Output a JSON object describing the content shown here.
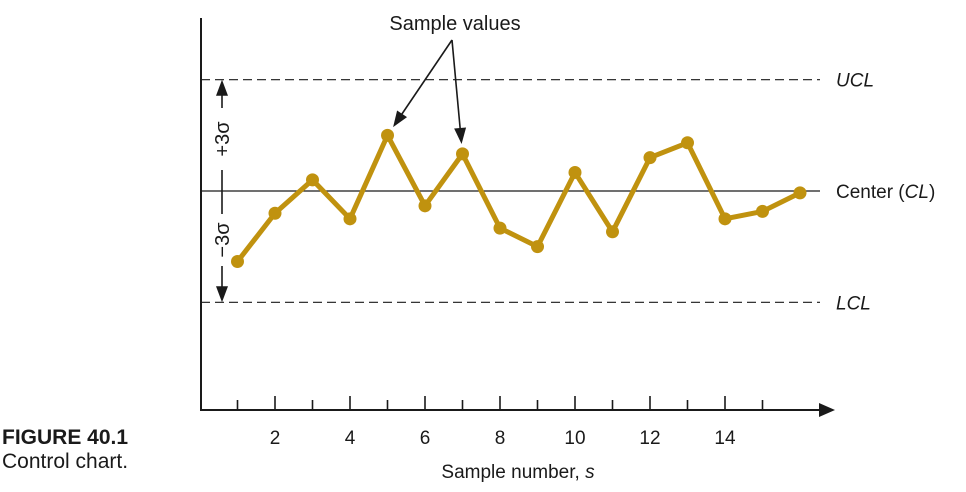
{
  "figure": {
    "number": "FIGURE 40.1",
    "caption": "Control chart."
  },
  "chart_data": {
    "type": "line",
    "xlabel": "Sample number, s",
    "ylabel": "",
    "x_tick_labels": [
      "2",
      "4",
      "6",
      "8",
      "10",
      "12",
      "14"
    ],
    "xlim": [
      0,
      17
    ],
    "ylim": [
      -5.5,
      3.2
    ],
    "series": [
      {
        "x": [
          1,
          2,
          3,
          4,
          5,
          6,
          7,
          8,
          9,
          10,
          11,
          12,
          13,
          14,
          15,
          16
        ],
        "values": [
          -1.9,
          -0.6,
          0.3,
          -0.75,
          1.5,
          -0.4,
          1.0,
          -1.0,
          -1.5,
          0.5,
          -1.1,
          0.9,
          1.3,
          -0.75,
          -0.55,
          -0.05
        ]
      }
    ],
    "reference_lines": [
      {
        "key": "ucl",
        "value": 3,
        "label_italic": "UCL",
        "label_prefix": "",
        "label_suffix": "",
        "style": "dashed"
      },
      {
        "key": "center",
        "value": 0,
        "label_prefix": "Center (",
        "label_italic": "CL",
        "label_suffix": ")",
        "style": "solid"
      },
      {
        "key": "lcl",
        "value": -3,
        "label_italic": "LCL",
        "label_prefix": "",
        "label_suffix": "",
        "style": "dashed"
      }
    ],
    "sigma_labels": {
      "upper": "+3σ",
      "lower": "−3σ"
    },
    "annotation": {
      "text": "Sample values",
      "points_to_x": [
        5,
        7
      ]
    },
    "colors": {
      "series": "#C0920F",
      "axis": "#1a1a1a"
    }
  }
}
